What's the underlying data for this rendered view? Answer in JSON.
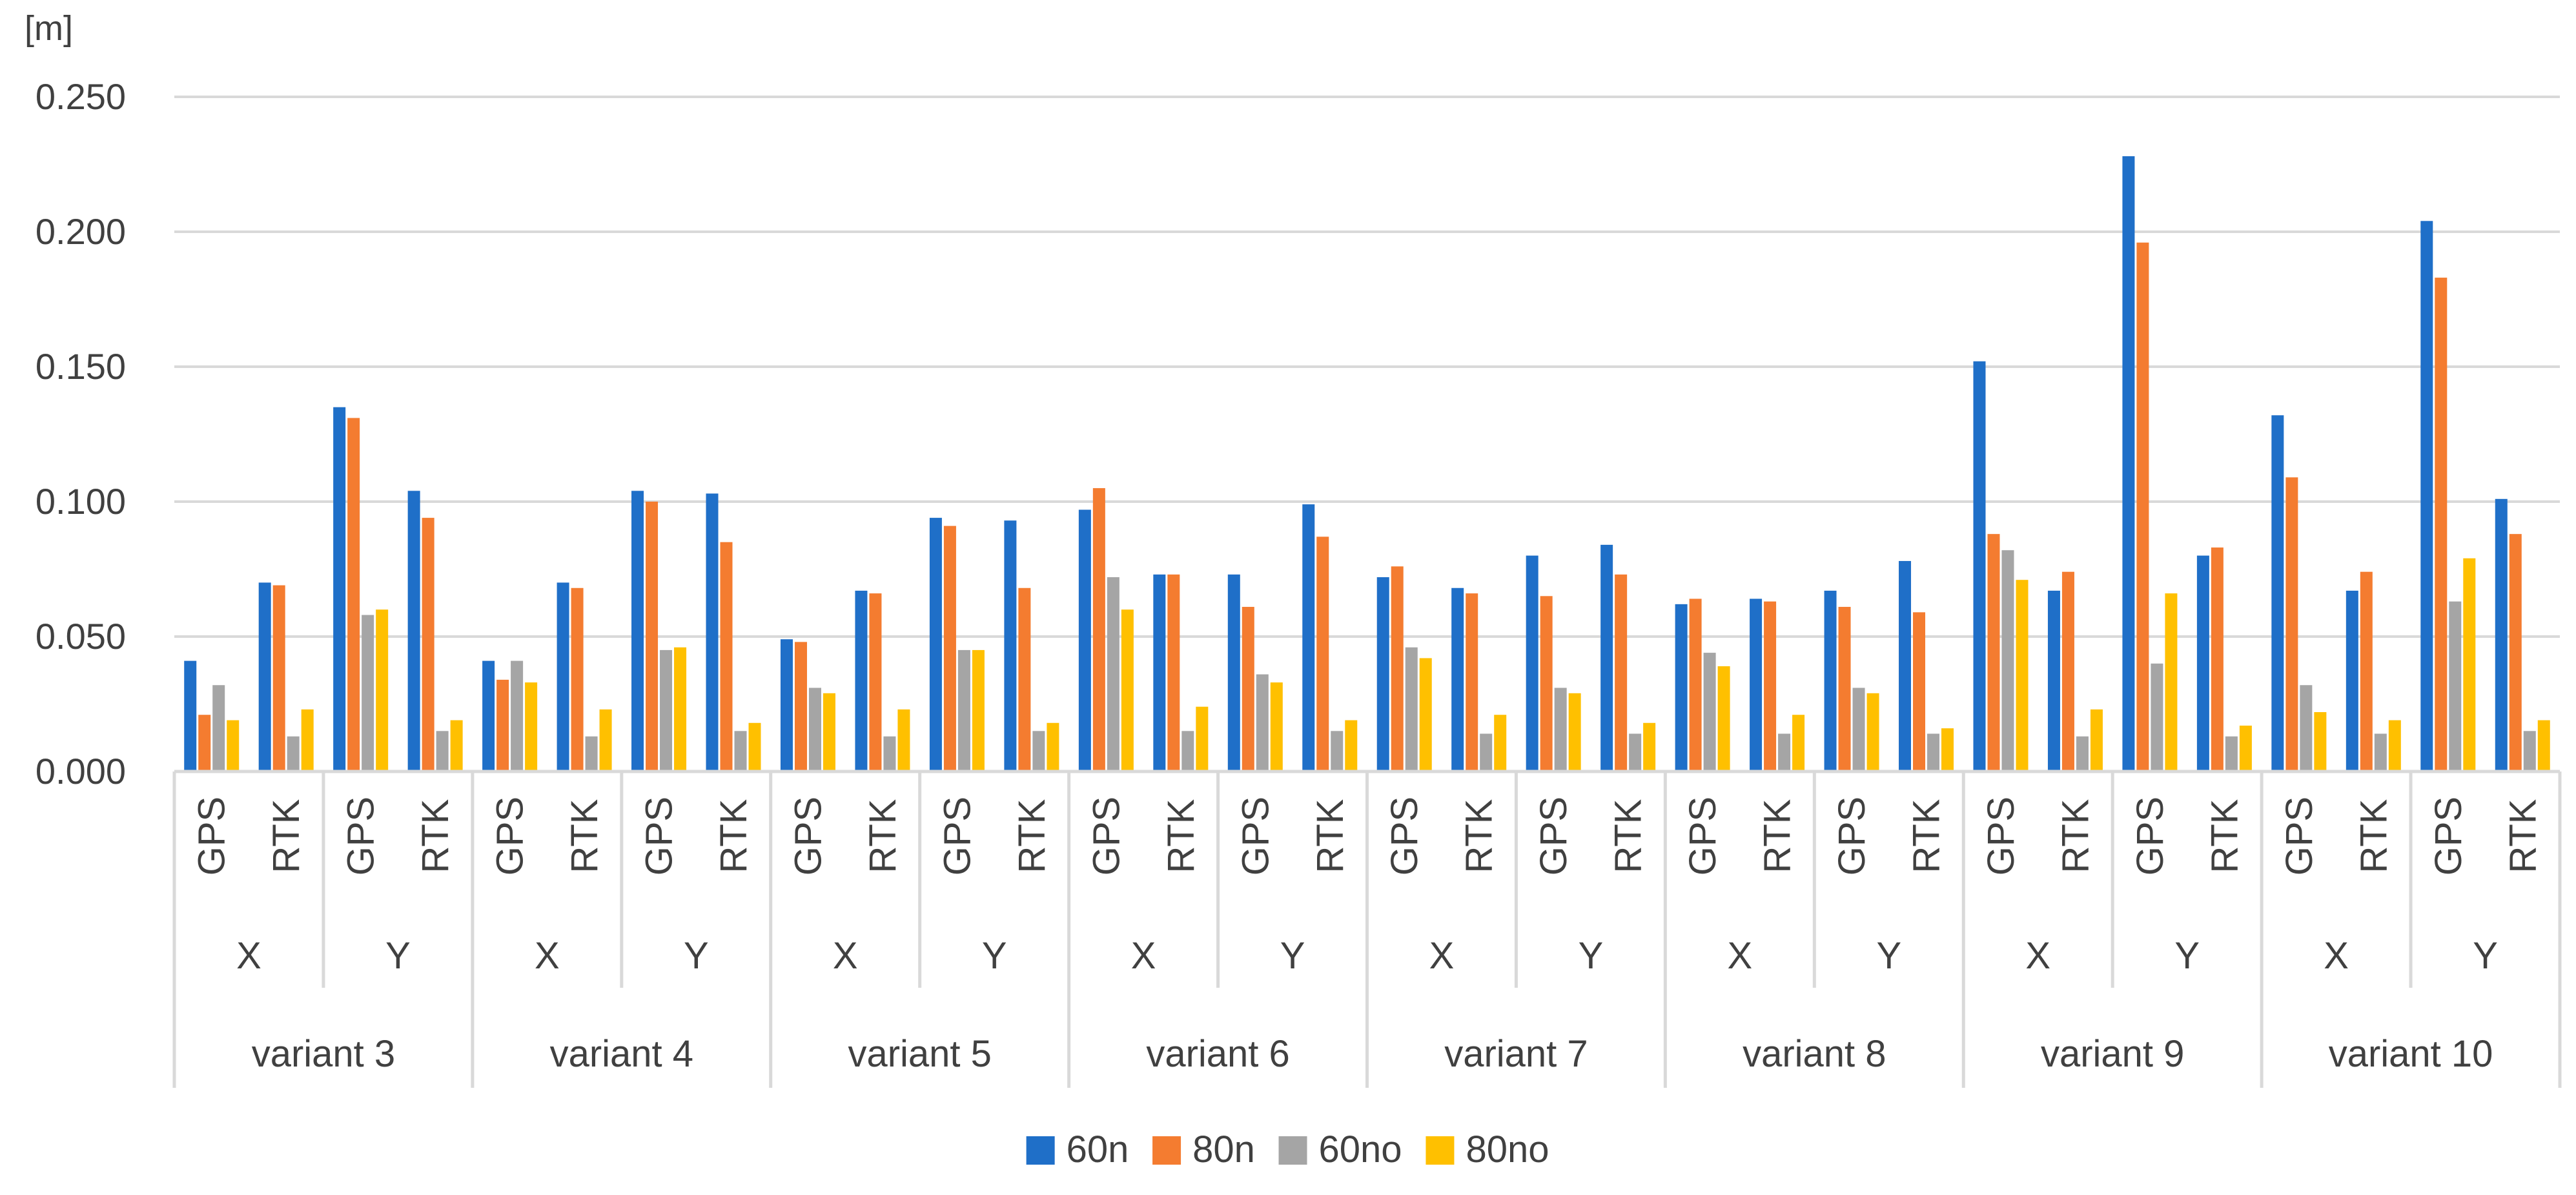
{
  "chart_data": {
    "type": "bar",
    "ylabel": "[m]",
    "ylim": [
      0,
      0.25
    ],
    "y_ticks": [
      "0.000",
      "0.050",
      "0.100",
      "0.150",
      "0.200",
      "0.250"
    ],
    "grid": true,
    "legend_position": "bottom",
    "groups": [
      "variant 3",
      "variant 4",
      "variant 5",
      "variant 6",
      "variant 7",
      "variant 8",
      "variant 9",
      "variant 10"
    ],
    "axes": [
      "X",
      "Y"
    ],
    "methods": [
      "GPS",
      "RTK"
    ],
    "categories": [
      "variant 3 X GPS",
      "variant 3 X RTK",
      "variant 3 Y GPS",
      "variant 3 Y RTK",
      "variant 4 X GPS",
      "variant 4 X RTK",
      "variant 4 Y GPS",
      "variant 4 Y RTK",
      "variant 5 X GPS",
      "variant 5 X RTK",
      "variant 5 Y GPS",
      "variant 5 Y RTK",
      "variant 6 X GPS",
      "variant 6 X RTK",
      "variant 6 Y GPS",
      "variant 6 Y RTK",
      "variant 7 X GPS",
      "variant 7 X RTK",
      "variant 7 Y GPS",
      "variant 7 Y RTK",
      "variant 8 X GPS",
      "variant 8 X RTK",
      "variant 8 Y GPS",
      "variant 8 Y RTK",
      "variant 9 X GPS",
      "variant 9 X RTK",
      "variant 9 Y GPS",
      "variant 9 Y RTK",
      "variant 10 X GPS",
      "variant 10 X RTK",
      "variant 10 Y GPS",
      "variant 10 Y RTK"
    ],
    "series": [
      {
        "name": "60n",
        "color": "#1F6FC8",
        "values": [
          0.041,
          0.07,
          0.135,
          0.104,
          0.041,
          0.07,
          0.104,
          0.103,
          0.049,
          0.067,
          0.094,
          0.093,
          0.097,
          0.073,
          0.073,
          0.099,
          0.072,
          0.068,
          0.08,
          0.084,
          0.062,
          0.064,
          0.067,
          0.078,
          0.152,
          0.067,
          0.228,
          0.08,
          0.132,
          0.067,
          0.204,
          0.101
        ]
      },
      {
        "name": "80n",
        "color": "#F47C30",
        "values": [
          0.021,
          0.069,
          0.131,
          0.094,
          0.034,
          0.068,
          0.1,
          0.085,
          0.048,
          0.066,
          0.091,
          0.068,
          0.105,
          0.073,
          0.061,
          0.087,
          0.076,
          0.066,
          0.065,
          0.073,
          0.064,
          0.063,
          0.061,
          0.059,
          0.088,
          0.074,
          0.196,
          0.083,
          0.109,
          0.074,
          0.183,
          0.088
        ]
      },
      {
        "name": "60no",
        "color": "#A5A5A5",
        "values": [
          0.032,
          0.013,
          0.058,
          0.015,
          0.041,
          0.013,
          0.045,
          0.015,
          0.031,
          0.013,
          0.045,
          0.015,
          0.072,
          0.015,
          0.036,
          0.015,
          0.046,
          0.014,
          0.031,
          0.014,
          0.044,
          0.014,
          0.031,
          0.014,
          0.082,
          0.013,
          0.04,
          0.013,
          0.032,
          0.014,
          0.063,
          0.015
        ]
      },
      {
        "name": "80no",
        "color": "#FFC000",
        "values": [
          0.019,
          0.023,
          0.06,
          0.019,
          0.033,
          0.023,
          0.046,
          0.018,
          0.029,
          0.023,
          0.045,
          0.018,
          0.06,
          0.024,
          0.033,
          0.019,
          0.042,
          0.021,
          0.029,
          0.018,
          0.039,
          0.021,
          0.029,
          0.016,
          0.071,
          0.023,
          0.066,
          0.017,
          0.022,
          0.019,
          0.079,
          0.019
        ]
      }
    ]
  }
}
